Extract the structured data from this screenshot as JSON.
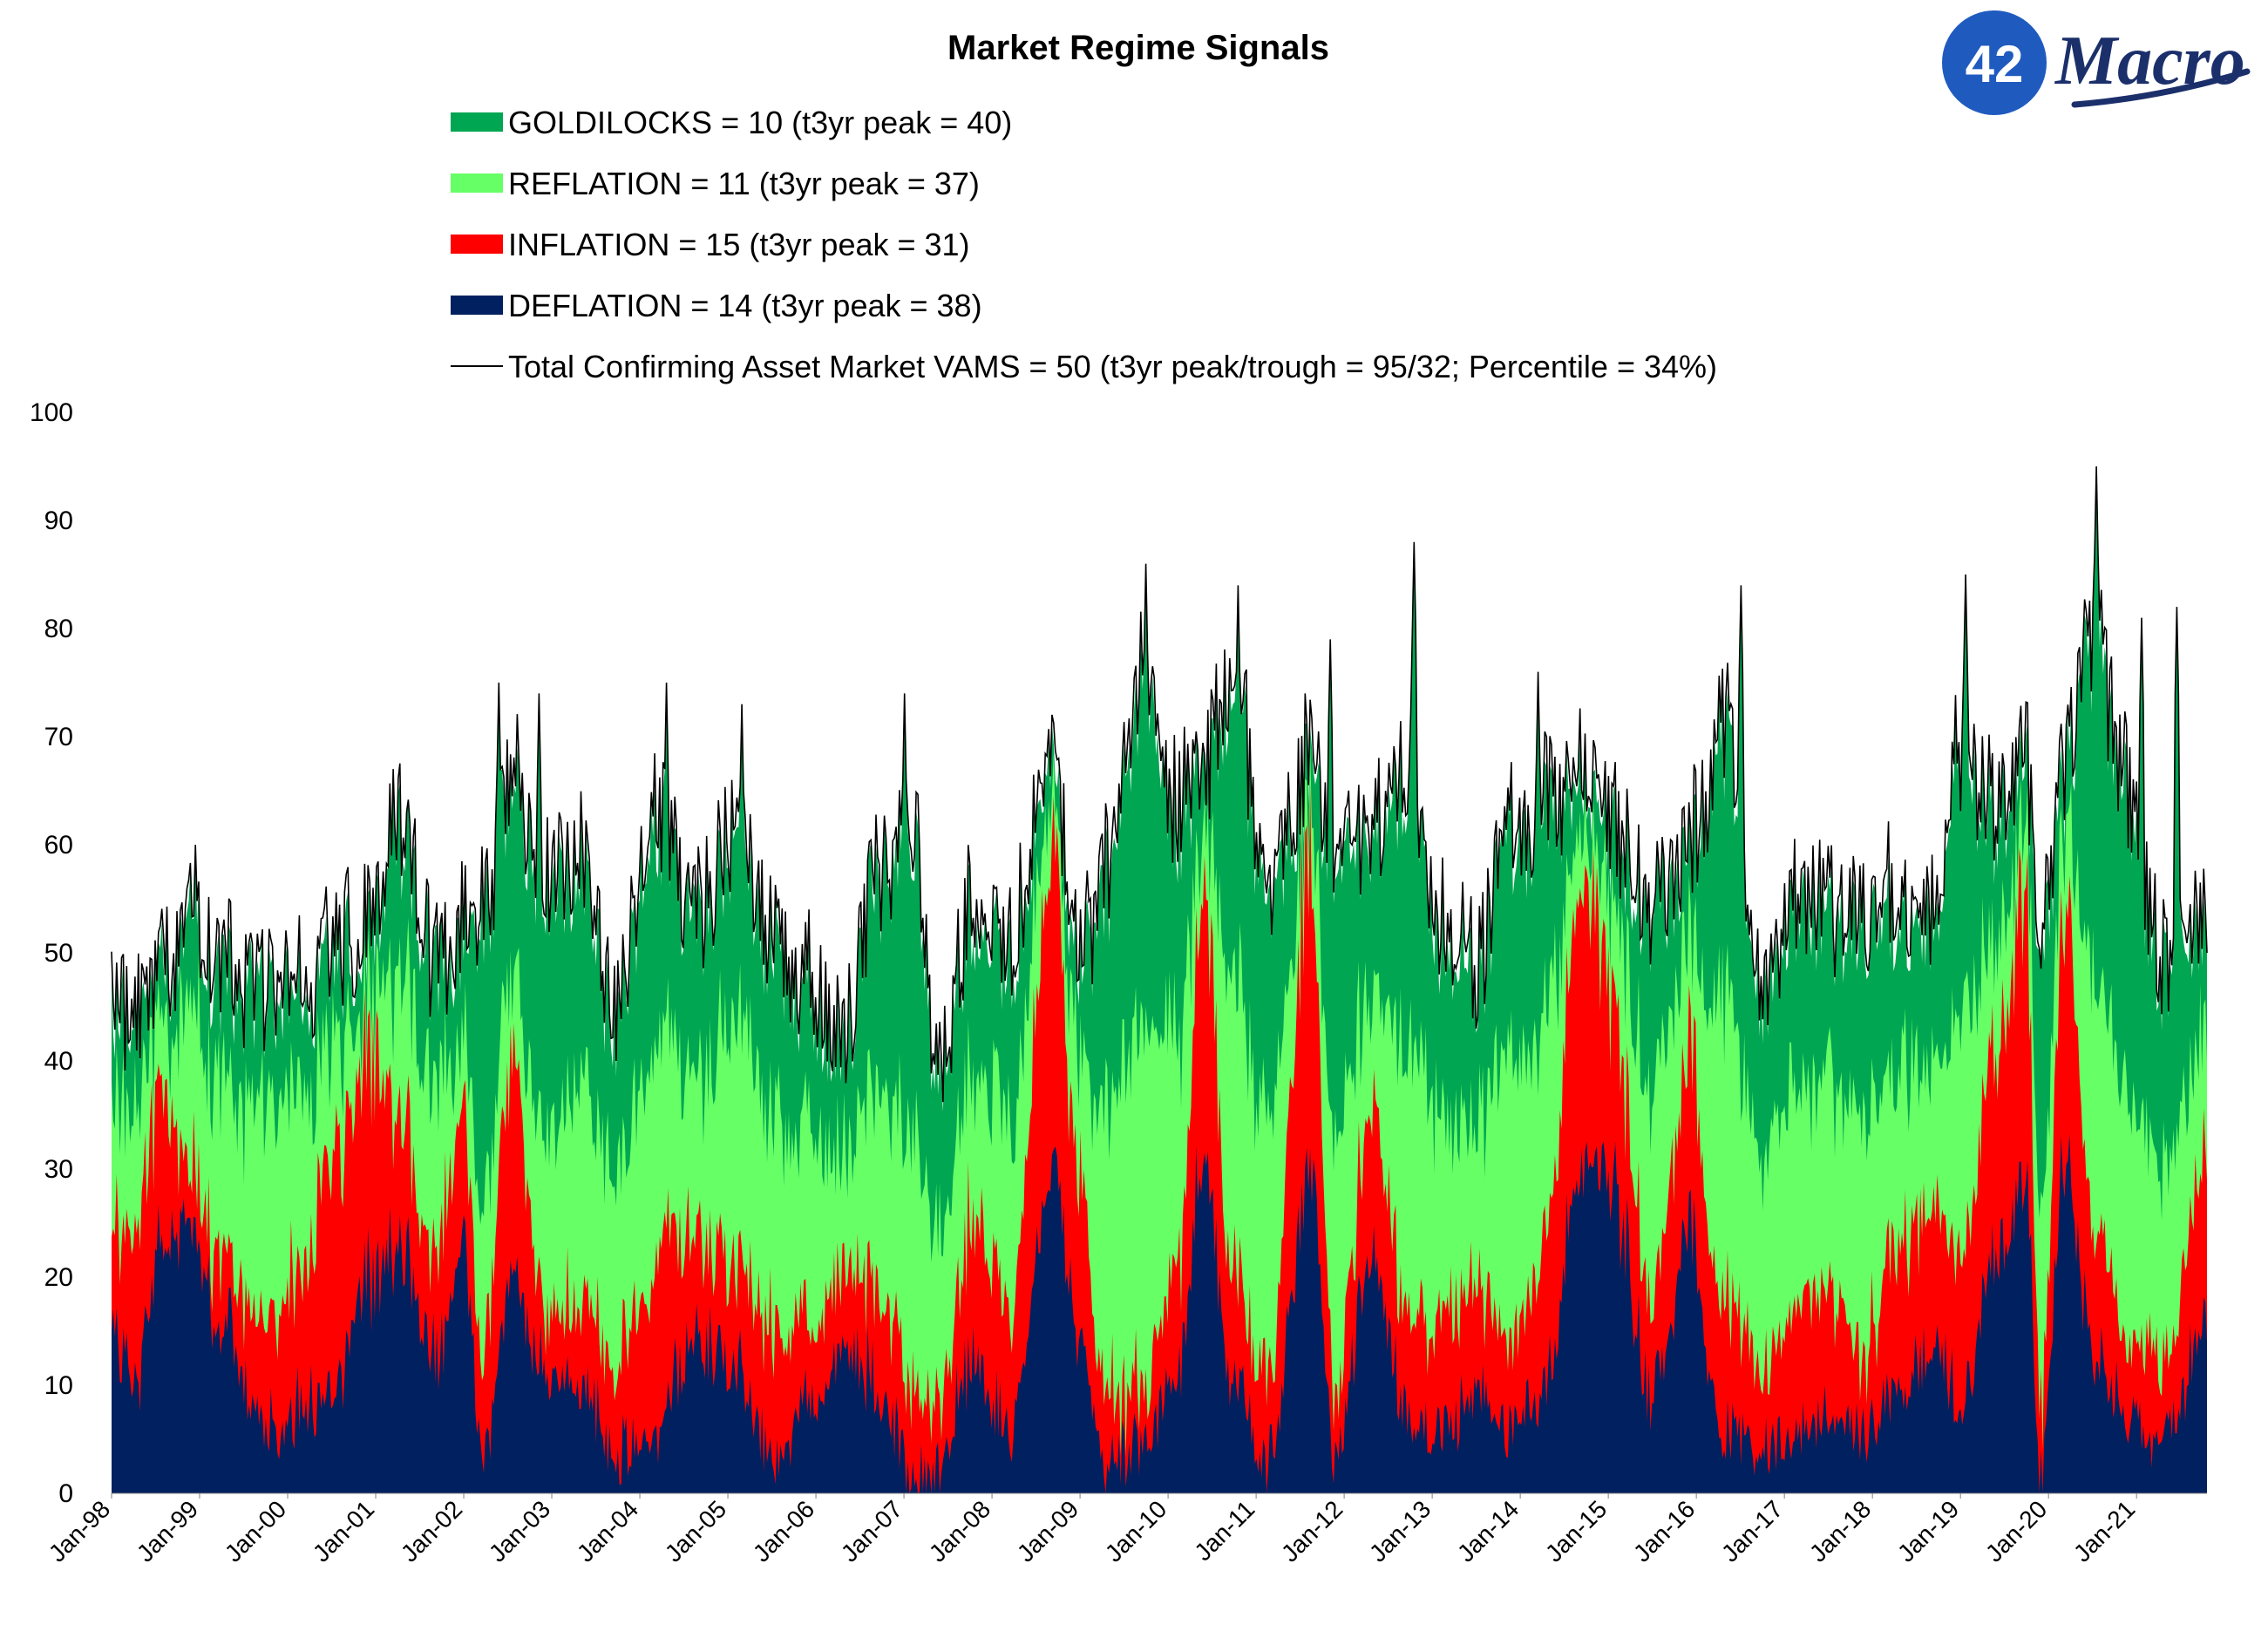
{
  "logo": {
    "number": "42",
    "word": "Macro",
    "colors": {
      "circle": "#1f5bbf",
      "word": "#1b2f6b"
    }
  },
  "chart_data": {
    "type": "area",
    "stacked": true,
    "title": "Market Regime Signals",
    "xlabel": "",
    "ylabel": "",
    "ylim": [
      0,
      100
    ],
    "yticks": [
      0,
      10,
      20,
      30,
      40,
      50,
      60,
      70,
      80,
      90,
      100
    ],
    "x_tick_labels": [
      "Jan-98",
      "Jan-99",
      "Jan-00",
      "Jan-01",
      "Jan-02",
      "Jan-03",
      "Jan-04",
      "Jan-05",
      "Jan-06",
      "Jan-07",
      "Jan-08",
      "Jan-09",
      "Jan-10",
      "Jan-11",
      "Jan-12",
      "Jan-13",
      "Jan-14",
      "Jan-15",
      "Jan-16",
      "Jan-17",
      "Jan-18",
      "Jan-19",
      "Jan-20",
      "Jan-21"
    ],
    "grid": false,
    "legend_position": "top",
    "x_start_year": 1998,
    "x_end_year": 2021.8,
    "series_colors": {
      "goldilocks": "#00a651",
      "reflation": "#66ff66",
      "inflation": "#ff0000",
      "deflation": "#002060",
      "total": "#000000"
    },
    "legend": [
      {
        "key": "goldilocks",
        "label": "GOLDILOCKS = 10 (t3yr peak = 40)",
        "marker": "box"
      },
      {
        "key": "reflation",
        "label": "REFLATION = 11 (t3yr peak = 37)",
        "marker": "box"
      },
      {
        "key": "inflation",
        "label": "INFLATION = 15 (t3yr peak = 31)",
        "marker": "box"
      },
      {
        "key": "deflation",
        "label": "DEFLATION = 14 (t3yr peak = 38)",
        "marker": "box"
      },
      {
        "key": "total",
        "label": "Total Confirming Asset Market VAMS = 50 (t3yr peak/trough = 95/32; Percentile = 34%)",
        "marker": "line"
      }
    ],
    "knots": [
      {
        "x": 1998.0,
        "deflation": 15,
        "inflation": 9,
        "reflation": 12,
        "goldilocks": 9,
        "total": 45
      },
      {
        "x": 1998.25,
        "deflation": 10,
        "inflation": 14,
        "reflation": 12,
        "goldilocks": 8,
        "total": 44
      },
      {
        "x": 1998.6,
        "deflation": 23,
        "inflation": 15,
        "reflation": 5,
        "goldilocks": 5,
        "total": 48
      },
      {
        "x": 1998.85,
        "deflation": 24,
        "inflation": 6,
        "reflation": 14,
        "goldilocks": 8,
        "total": 52
      },
      {
        "x": 1999.3,
        "deflation": 15,
        "inflation": 6,
        "reflation": 16,
        "goldilocks": 10,
        "total": 47
      },
      {
        "x": 1999.7,
        "deflation": 6,
        "inflation": 10,
        "reflation": 20,
        "goldilocks": 10,
        "total": 46
      },
      {
        "x": 2000.1,
        "deflation": 7,
        "inflation": 12,
        "reflation": 18,
        "goldilocks": 9,
        "total": 46
      },
      {
        "x": 2000.5,
        "deflation": 10,
        "inflation": 20,
        "reflation": 10,
        "goldilocks": 8,
        "total": 48
      },
      {
        "x": 2000.9,
        "deflation": 20,
        "inflation": 20,
        "reflation": 6,
        "goldilocks": 6,
        "total": 52
      },
      {
        "x": 2001.3,
        "deflation": 22,
        "inflation": 12,
        "reflation": 14,
        "goldilocks": 12,
        "total": 60
      },
      {
        "x": 2001.7,
        "deflation": 12,
        "inflation": 10,
        "reflation": 16,
        "goldilocks": 10,
        "total": 48
      },
      {
        "x": 2002.0,
        "deflation": 24,
        "inflation": 14,
        "reflation": 6,
        "goldilocks": 8,
        "total": 52
      },
      {
        "x": 2002.2,
        "deflation": 3,
        "inflation": 8,
        "reflation": 14,
        "goldilocks": 27,
        "total": 52
      },
      {
        "x": 2002.55,
        "deflation": 20,
        "inflation": 20,
        "reflation": 8,
        "goldilocks": 18,
        "total": 66
      },
      {
        "x": 2002.9,
        "deflation": 12,
        "inflation": 6,
        "reflation": 16,
        "goldilocks": 22,
        "total": 56
      },
      {
        "x": 2003.3,
        "deflation": 10,
        "inflation": 8,
        "reflation": 20,
        "goldilocks": 20,
        "total": 58
      },
      {
        "x": 2003.7,
        "deflation": 4,
        "inflation": 8,
        "reflation": 18,
        "goldilocks": 14,
        "total": 44
      },
      {
        "x": 2004.2,
        "deflation": 5,
        "inflation": 16,
        "reflation": 20,
        "goldilocks": 20,
        "total": 61
      },
      {
        "x": 2004.6,
        "deflation": 14,
        "inflation": 10,
        "reflation": 14,
        "goldilocks": 14,
        "total": 52
      },
      {
        "x": 2005.1,
        "deflation": 12,
        "inflation": 10,
        "reflation": 22,
        "goldilocks": 16,
        "total": 60
      },
      {
        "x": 2005.5,
        "deflation": 3,
        "inflation": 12,
        "reflation": 20,
        "goldilocks": 15,
        "total": 50
      },
      {
        "x": 2005.9,
        "deflation": 8,
        "inflation": 8,
        "reflation": 18,
        "goldilocks": 12,
        "total": 46
      },
      {
        "x": 2006.3,
        "deflation": 14,
        "inflation": 8,
        "reflation": 10,
        "goldilocks": 10,
        "total": 42
      },
      {
        "x": 2006.7,
        "deflation": 10,
        "inflation": 10,
        "reflation": 18,
        "goldilocks": 18,
        "total": 56
      },
      {
        "x": 2007.1,
        "deflation": 2,
        "inflation": 8,
        "reflation": 24,
        "goldilocks": 26,
        "total": 60
      },
      {
        "x": 2007.4,
        "deflation": 2,
        "inflation": 6,
        "reflation": 16,
        "goldilocks": 14,
        "total": 38
      },
      {
        "x": 2007.8,
        "deflation": 12,
        "inflation": 14,
        "reflation": 14,
        "goldilocks": 14,
        "total": 54
      },
      {
        "x": 2008.2,
        "deflation": 6,
        "inflation": 12,
        "reflation": 18,
        "goldilocks": 14,
        "total": 50
      },
      {
        "x": 2008.7,
        "deflation": 30,
        "inflation": 28,
        "reflation": 4,
        "goldilocks": 4,
        "total": 66
      },
      {
        "x": 2009.0,
        "deflation": 14,
        "inflation": 14,
        "reflation": 12,
        "goldilocks": 8,
        "total": 48
      },
      {
        "x": 2009.3,
        "deflation": 2,
        "inflation": 6,
        "reflation": 26,
        "goldilocks": 22,
        "total": 56
      },
      {
        "x": 2009.7,
        "deflation": 5,
        "inflation": 5,
        "reflation": 34,
        "goldilocks": 30,
        "total": 74
      },
      {
        "x": 2010.1,
        "deflation": 10,
        "inflation": 10,
        "reflation": 22,
        "goldilocks": 20,
        "total": 62
      },
      {
        "x": 2010.4,
        "deflation": 30,
        "inflation": 24,
        "reflation": 6,
        "goldilocks": 6,
        "total": 66
      },
      {
        "x": 2010.75,
        "deflation": 10,
        "inflation": 10,
        "reflation": 28,
        "goldilocks": 26,
        "total": 74
      },
      {
        "x": 2011.15,
        "deflation": 3,
        "inflation": 8,
        "reflation": 22,
        "goldilocks": 20,
        "total": 53
      },
      {
        "x": 2011.6,
        "deflation": 30,
        "inflation": 28,
        "reflation": 4,
        "goldilocks": 4,
        "total": 66
      },
      {
        "x": 2011.9,
        "deflation": 4,
        "inflation": 6,
        "reflation": 24,
        "goldilocks": 26,
        "total": 60
      },
      {
        "x": 2012.3,
        "deflation": 22,
        "inflation": 14,
        "reflation": 10,
        "goldilocks": 14,
        "total": 60
      },
      {
        "x": 2012.7,
        "deflation": 8,
        "inflation": 10,
        "reflation": 24,
        "goldilocks": 24,
        "total": 66
      },
      {
        "x": 2013.1,
        "deflation": 6,
        "inflation": 10,
        "reflation": 20,
        "goldilocks": 16,
        "total": 52
      },
      {
        "x": 2013.5,
        "deflation": 10,
        "inflation": 10,
        "reflation": 14,
        "goldilocks": 14,
        "total": 48
      },
      {
        "x": 2013.9,
        "deflation": 6,
        "inflation": 8,
        "reflation": 26,
        "goldilocks": 20,
        "total": 60
      },
      {
        "x": 2014.3,
        "deflation": 10,
        "inflation": 14,
        "reflation": 20,
        "goldilocks": 18,
        "total": 62
      },
      {
        "x": 2014.7,
        "deflation": 32,
        "inflation": 26,
        "reflation": 4,
        "goldilocks": 4,
        "total": 66
      },
      {
        "x": 2015.1,
        "deflation": 26,
        "inflation": 16,
        "reflation": 10,
        "goldilocks": 8,
        "total": 60
      },
      {
        "x": 2015.5,
        "deflation": 8,
        "inflation": 10,
        "reflation": 20,
        "goldilocks": 16,
        "total": 54
      },
      {
        "x": 2015.9,
        "deflation": 24,
        "inflation": 16,
        "reflation": 10,
        "goldilocks": 8,
        "total": 58
      },
      {
        "x": 2016.3,
        "deflation": 6,
        "inflation": 12,
        "reflation": 28,
        "goldilocks": 24,
        "total": 70
      },
      {
        "x": 2016.7,
        "deflation": 4,
        "inflation": 8,
        "reflation": 20,
        "goldilocks": 14,
        "total": 46
      },
      {
        "x": 2017.1,
        "deflation": 6,
        "inflation": 12,
        "reflation": 20,
        "goldilocks": 16,
        "total": 54
      },
      {
        "x": 2017.5,
        "deflation": 8,
        "inflation": 12,
        "reflation": 18,
        "goldilocks": 14,
        "total": 52
      },
      {
        "x": 2017.9,
        "deflation": 6,
        "inflation": 8,
        "reflation": 22,
        "goldilocks": 16,
        "total": 52
      },
      {
        "x": 2018.3,
        "deflation": 10,
        "inflation": 14,
        "reflation": 16,
        "goldilocks": 14,
        "total": 54
      },
      {
        "x": 2018.7,
        "deflation": 14,
        "inflation": 12,
        "reflation": 14,
        "goldilocks": 14,
        "total": 54
      },
      {
        "x": 2019.0,
        "deflation": 8,
        "inflation": 14,
        "reflation": 22,
        "goldilocks": 24,
        "total": 68
      },
      {
        "x": 2019.4,
        "deflation": 22,
        "inflation": 18,
        "reflation": 10,
        "goldilocks": 12,
        "total": 62
      },
      {
        "x": 2019.75,
        "deflation": 28,
        "inflation": 26,
        "reflation": 6,
        "goldilocks": 6,
        "total": 66
      },
      {
        "x": 2019.9,
        "deflation": 2,
        "inflation": 6,
        "reflation": 18,
        "goldilocks": 24,
        "total": 50
      },
      {
        "x": 2020.2,
        "deflation": 30,
        "inflation": 24,
        "reflation": 6,
        "goldilocks": 6,
        "total": 66
      },
      {
        "x": 2020.5,
        "deflation": 12,
        "inflation": 12,
        "reflation": 24,
        "goldilocks": 30,
        "total": 78
      },
      {
        "x": 2020.9,
        "deflation": 8,
        "inflation": 8,
        "reflation": 22,
        "goldilocks": 26,
        "total": 64
      },
      {
        "x": 2021.3,
        "deflation": 4,
        "inflation": 8,
        "reflation": 18,
        "goldilocks": 18,
        "total": 48
      },
      {
        "x": 2021.8,
        "deflation": 14,
        "inflation": 15,
        "reflation": 11,
        "goldilocks": 10,
        "total": 50
      }
    ],
    "spikes": [
      {
        "x": 1998.95,
        "total": 60
      },
      {
        "x": 2001.2,
        "total": 67
      },
      {
        "x": 2002.4,
        "total": 75
      },
      {
        "x": 2002.85,
        "total": 74
      },
      {
        "x": 2004.3,
        "total": 75
      },
      {
        "x": 2005.15,
        "total": 73
      },
      {
        "x": 2007.0,
        "total": 74
      },
      {
        "x": 2009.75,
        "total": 86
      },
      {
        "x": 2010.8,
        "total": 84
      },
      {
        "x": 2011.85,
        "total": 79
      },
      {
        "x": 2012.8,
        "total": 88
      },
      {
        "x": 2014.2,
        "total": 76
      },
      {
        "x": 2016.5,
        "total": 84
      },
      {
        "x": 2019.05,
        "total": 85
      },
      {
        "x": 2020.55,
        "total": 95
      },
      {
        "x": 2021.05,
        "total": 81
      },
      {
        "x": 2021.45,
        "total": 82
      }
    ]
  }
}
